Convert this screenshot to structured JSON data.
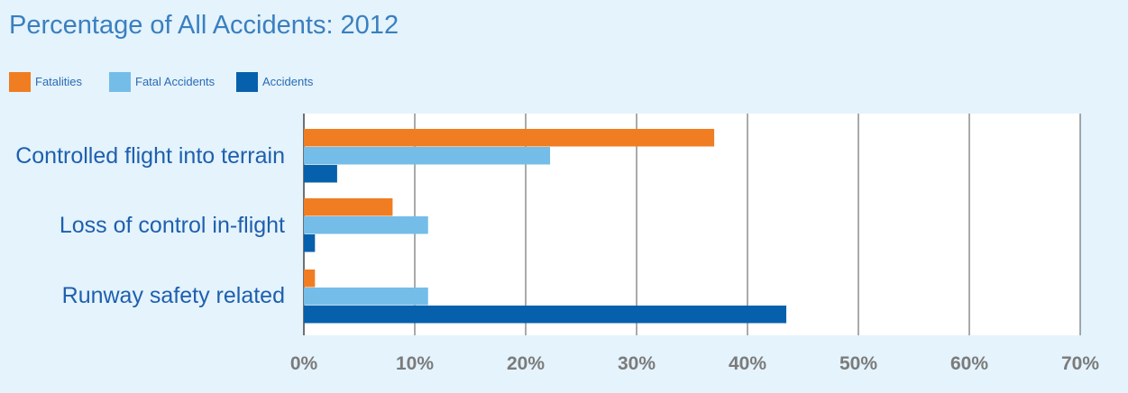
{
  "chart_data": {
    "type": "bar",
    "orientation": "horizontal",
    "title": "Percentage of All Accidents: 2012",
    "categories": [
      "Controlled flight into terrain",
      "Loss of control in-flight",
      "Runway safety related"
    ],
    "series": [
      {
        "name": "Fatalities",
        "color": "#f07d22",
        "values": [
          37,
          8,
          1
        ]
      },
      {
        "name": "Fatal Accidents",
        "color": "#74bde9",
        "values": [
          22.2,
          11.2,
          11.2
        ]
      },
      {
        "name": "Accidents",
        "color": "#0760ac",
        "values": [
          3,
          1,
          43.5
        ]
      }
    ],
    "xlim": [
      0,
      70
    ],
    "x_ticks": [
      0,
      10,
      20,
      30,
      40,
      50,
      60,
      70
    ],
    "x_tick_labels": [
      "0%",
      "10%",
      "20%",
      "30%",
      "40%",
      "50%",
      "60%",
      "70%"
    ],
    "xlabel": "",
    "ylabel": "",
    "grid": "vertical",
    "legend": "top-left"
  }
}
